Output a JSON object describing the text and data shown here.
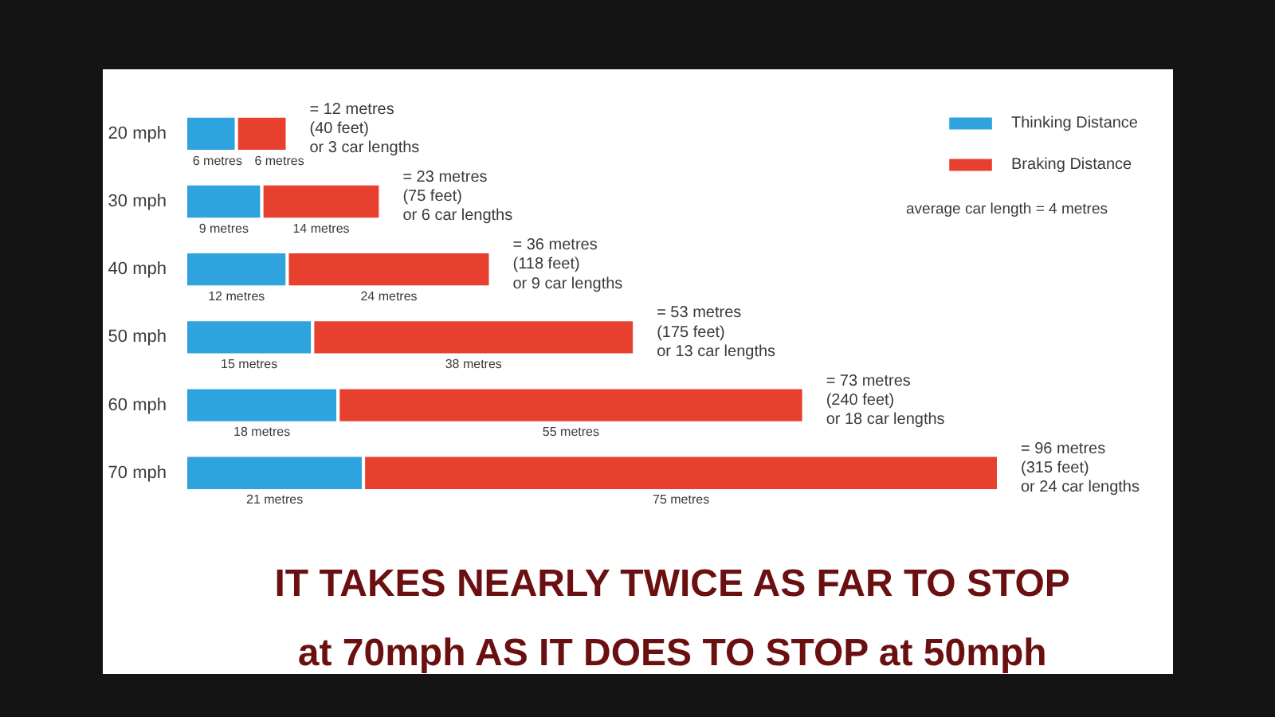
{
  "chart_data": {
    "type": "bar",
    "orientation": "horizontal",
    "stacked": true,
    "title": "IT TAKES NEARLY TWICE AS FAR TO STOP at 70mph AS IT DOES TO STOP at 50mph",
    "categories": [
      "20 mph",
      "30 mph",
      "40 mph",
      "50 mph",
      "60 mph",
      "70 mph"
    ],
    "series": [
      {
        "name": "Thinking Distance",
        "color": "#2ea3dd",
        "values": [
          6,
          9,
          12,
          15,
          18,
          21
        ],
        "value_labels": [
          "6 metres",
          "9 metres",
          "12 metres",
          "15 metres",
          "18 metres",
          "21 metres"
        ]
      },
      {
        "name": "Braking Distance",
        "color": "#e8402f",
        "values": [
          6,
          14,
          24,
          38,
          55,
          75
        ],
        "value_labels": [
          "6 metres",
          "14 metres",
          "24 metres",
          "38 metres",
          "55 metres",
          "75 metres"
        ]
      }
    ],
    "totals": [
      "= 12 metres\n(40 feet)\nor 3 car lengths",
      "= 23 metres\n(75 feet)\nor 6 car lengths",
      "= 36 metres\n(118 feet)\nor 9 car lengths",
      "= 53 metres\n(175 feet)\nor 13 car lengths",
      "= 73 metres\n(240 feet)\nor 18 car lengths",
      "= 96 metres\n(315 feet)\nor 24 car lengths"
    ],
    "annotations": [
      "average car length = 4 metres"
    ],
    "legend": "top right",
    "tick_labels": "y"
  }
}
